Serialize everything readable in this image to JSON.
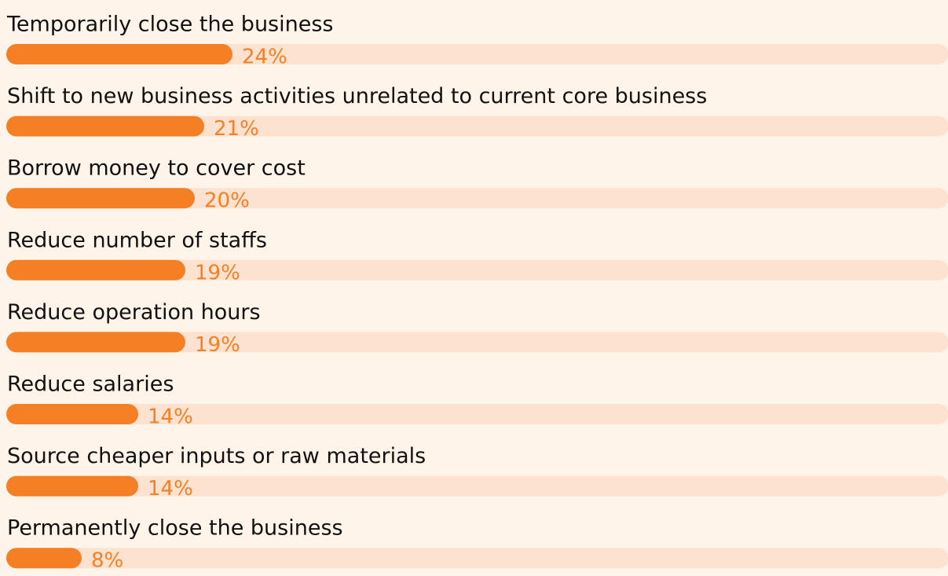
{
  "chart_data": {
    "type": "hbar",
    "categories": [
      "Temporarily close the business",
      "Shift to new business activities unrelated to current core business",
      "Borrow money to cover cost",
      "Reduce number of staffs",
      "Reduce operation hours",
      "Reduce salaries",
      "Source cheaper inputs or raw materials",
      "Permanently close the business"
    ],
    "values": [
      24,
      21,
      20,
      19,
      19,
      14,
      14,
      8
    ],
    "value_labels": [
      "24%",
      "21%",
      "20%",
      "19%",
      "19%",
      "14%",
      "14%",
      "8%"
    ],
    "color": "#f47f24",
    "xlim": [
      0,
      100
    ]
  }
}
